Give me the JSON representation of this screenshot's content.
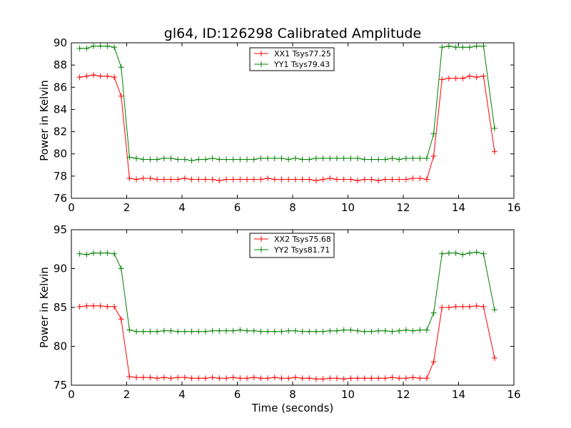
{
  "title": "gl64, ID:126298 Calibrated Amplitude",
  "chart_data": [
    {
      "type": "line",
      "title": "gl64, ID:126298 Calibrated Amplitude",
      "xlabel": "",
      "ylabel": "Power in Kelvin",
      "xlim": [
        0,
        16
      ],
      "ylim": [
        76,
        90
      ],
      "xticks": [
        "0",
        "2",
        "4",
        "6",
        "8",
        "10",
        "12",
        "14",
        "16"
      ],
      "yticks": [
        "76",
        "78",
        "80",
        "82",
        "84",
        "86",
        "88",
        "90"
      ],
      "legend_position": "top-center",
      "grid": false,
      "x": [
        0.3,
        0.55,
        0.8,
        1.05,
        1.3,
        1.55,
        1.8,
        2.1,
        2.35,
        2.6,
        2.85,
        3.1,
        3.35,
        3.6,
        3.85,
        4.1,
        4.35,
        4.6,
        4.85,
        5.1,
        5.35,
        5.6,
        5.85,
        6.1,
        6.35,
        6.6,
        6.85,
        7.1,
        7.35,
        7.6,
        7.85,
        8.1,
        8.35,
        8.6,
        8.85,
        9.1,
        9.35,
        9.6,
        9.85,
        10.1,
        10.35,
        10.6,
        10.85,
        11.1,
        11.35,
        11.6,
        11.85,
        12.1,
        12.35,
        12.6,
        12.85,
        13.1,
        13.4,
        13.65,
        13.9,
        14.15,
        14.4,
        14.65,
        14.9,
        15.3
      ],
      "series": [
        {
          "name": "XX1 Tsys77.25",
          "color": "#ff0000",
          "values": [
            86.9,
            87.0,
            87.1,
            87.0,
            87.0,
            86.9,
            85.2,
            77.8,
            77.7,
            77.8,
            77.8,
            77.7,
            77.7,
            77.7,
            77.7,
            77.8,
            77.7,
            77.7,
            77.7,
            77.7,
            77.6,
            77.7,
            77.7,
            77.7,
            77.7,
            77.7,
            77.7,
            77.8,
            77.7,
            77.7,
            77.7,
            77.7,
            77.7,
            77.7,
            77.6,
            77.7,
            77.8,
            77.7,
            77.7,
            77.7,
            77.6,
            77.7,
            77.7,
            77.6,
            77.7,
            77.7,
            77.7,
            77.7,
            77.8,
            77.8,
            77.7,
            79.8,
            86.7,
            86.8,
            86.8,
            86.8,
            87.0,
            86.9,
            87.0,
            80.2
          ]
        },
        {
          "name": "YY1 Tsys79.43",
          "color": "#008000",
          "values": [
            89.5,
            89.5,
            89.7,
            89.7,
            89.7,
            89.6,
            87.8,
            79.7,
            79.6,
            79.5,
            79.5,
            79.5,
            79.6,
            79.6,
            79.5,
            79.5,
            79.4,
            79.5,
            79.5,
            79.6,
            79.5,
            79.5,
            79.5,
            79.5,
            79.5,
            79.5,
            79.6,
            79.6,
            79.6,
            79.6,
            79.5,
            79.6,
            79.5,
            79.5,
            79.6,
            79.6,
            79.6,
            79.6,
            79.6,
            79.6,
            79.6,
            79.5,
            79.5,
            79.5,
            79.5,
            79.6,
            79.5,
            79.6,
            79.6,
            79.6,
            79.6,
            81.8,
            89.6,
            89.7,
            89.6,
            89.6,
            89.6,
            89.7,
            89.7,
            82.3
          ]
        }
      ]
    },
    {
      "type": "line",
      "title": "",
      "xlabel": "Time (seconds)",
      "ylabel": "Power in Kelvin",
      "xlim": [
        0,
        16
      ],
      "ylim": [
        75,
        95
      ],
      "xticks": [
        "0",
        "2",
        "4",
        "6",
        "8",
        "10",
        "12",
        "14",
        "16"
      ],
      "yticks": [
        "75",
        "80",
        "85",
        "90",
        "95"
      ],
      "legend_position": "top-center",
      "grid": false,
      "x": [
        0.3,
        0.55,
        0.8,
        1.05,
        1.3,
        1.55,
        1.8,
        2.1,
        2.35,
        2.6,
        2.85,
        3.1,
        3.35,
        3.6,
        3.85,
        4.1,
        4.35,
        4.6,
        4.85,
        5.1,
        5.35,
        5.6,
        5.85,
        6.1,
        6.35,
        6.6,
        6.85,
        7.1,
        7.35,
        7.6,
        7.85,
        8.1,
        8.35,
        8.6,
        8.85,
        9.1,
        9.35,
        9.6,
        9.85,
        10.1,
        10.35,
        10.6,
        10.85,
        11.1,
        11.35,
        11.6,
        11.85,
        12.1,
        12.35,
        12.6,
        12.85,
        13.1,
        13.4,
        13.65,
        13.9,
        14.15,
        14.4,
        14.65,
        14.9,
        15.3
      ],
      "series": [
        {
          "name": "XX2 Tsys75.68",
          "color": "#ff0000",
          "values": [
            85.1,
            85.2,
            85.2,
            85.2,
            85.1,
            85.1,
            83.5,
            76.1,
            76.0,
            76.0,
            76.0,
            75.9,
            76.0,
            75.9,
            76.0,
            76.0,
            75.9,
            75.9,
            75.9,
            76.0,
            75.9,
            75.9,
            76.0,
            75.9,
            75.9,
            76.0,
            75.9,
            75.9,
            76.0,
            75.9,
            75.9,
            76.0,
            75.9,
            75.9,
            75.8,
            75.8,
            75.9,
            75.9,
            75.8,
            75.9,
            75.9,
            75.9,
            75.9,
            75.9,
            75.9,
            76.0,
            75.9,
            75.9,
            76.0,
            75.9,
            75.9,
            78.0,
            85.0,
            85.0,
            85.1,
            85.1,
            85.1,
            85.2,
            85.1,
            78.5
          ]
        },
        {
          "name": "YY2 Tsys81.71",
          "color": "#008000",
          "values": [
            91.9,
            91.8,
            92.0,
            92.0,
            92.0,
            91.9,
            90.0,
            82.1,
            81.9,
            81.9,
            81.9,
            81.9,
            82.0,
            82.0,
            81.9,
            81.9,
            81.9,
            81.9,
            81.9,
            82.0,
            82.0,
            82.0,
            82.0,
            82.1,
            82.0,
            82.0,
            81.9,
            81.9,
            81.9,
            81.9,
            82.0,
            82.0,
            81.9,
            81.9,
            81.9,
            81.9,
            82.0,
            82.0,
            82.1,
            82.1,
            82.0,
            81.9,
            81.9,
            82.0,
            82.0,
            81.9,
            82.0,
            82.1,
            82.0,
            82.1,
            82.1,
            84.3,
            91.9,
            92.0,
            92.0,
            91.8,
            92.0,
            92.1,
            91.9,
            84.7
          ]
        }
      ]
    }
  ]
}
